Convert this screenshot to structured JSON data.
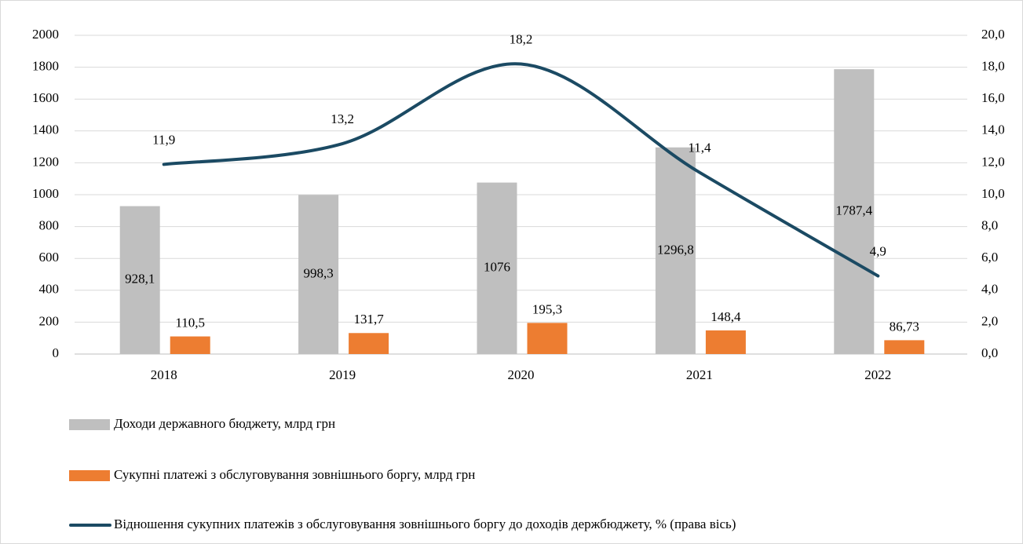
{
  "chart_data": {
    "type": "bar",
    "categories": [
      "2018",
      "2019",
      "2020",
      "2021",
      "2022"
    ],
    "series": [
      {
        "name": "Доходи державного бюджету, млрд грн",
        "type": "bar",
        "color": "#bfbfbf",
        "values": [
          928.1,
          998.3,
          1076,
          1296.8,
          1787.4
        ],
        "value_labels": [
          "928,1",
          "998,3",
          "1076",
          "1296,8",
          "1787,4"
        ]
      },
      {
        "name": "Сукупні платежі з обслуговування зовнішнього боргу, млрд грн",
        "type": "bar",
        "color": "#ed7d31",
        "values": [
          110.5,
          131.7,
          195.3,
          148.4,
          86.73
        ],
        "value_labels": [
          "110,5",
          "131,7",
          "195,3",
          "148,4",
          "86,73"
        ]
      },
      {
        "name": "Відношення сукупних платежів з обслуговування зовнішнього боргу до доходів держбюджету, % (права вісь)",
        "type": "line",
        "axis": "y2",
        "color": "#1b4a63",
        "values": [
          11.9,
          13.2,
          18.2,
          11.4,
          4.9
        ],
        "value_labels": [
          "11,9",
          "13,2",
          "18,2",
          "11,4",
          "4,9"
        ]
      }
    ],
    "ylim": [
      0,
      2000
    ],
    "yticks": [
      0,
      200,
      400,
      600,
      800,
      1000,
      1200,
      1400,
      1600,
      1800,
      2000
    ],
    "y2lim": [
      0,
      20
    ],
    "y2ticks": [
      {
        "value": 0,
        "label": "0,0"
      },
      {
        "value": 2,
        "label": "2,0"
      },
      {
        "value": 4,
        "label": "4,0"
      },
      {
        "value": 6,
        "label": "6,0"
      },
      {
        "value": 8,
        "label": "8,0"
      },
      {
        "value": 10,
        "label": "10,0"
      },
      {
        "value": 12,
        "label": "12,0"
      },
      {
        "value": 14,
        "label": "14,0"
      },
      {
        "value": 16,
        "label": "16,0"
      },
      {
        "value": 18,
        "label": "18,0"
      },
      {
        "value": 20,
        "label": "20,0"
      }
    ],
    "grid": true,
    "legend": "bottom"
  }
}
